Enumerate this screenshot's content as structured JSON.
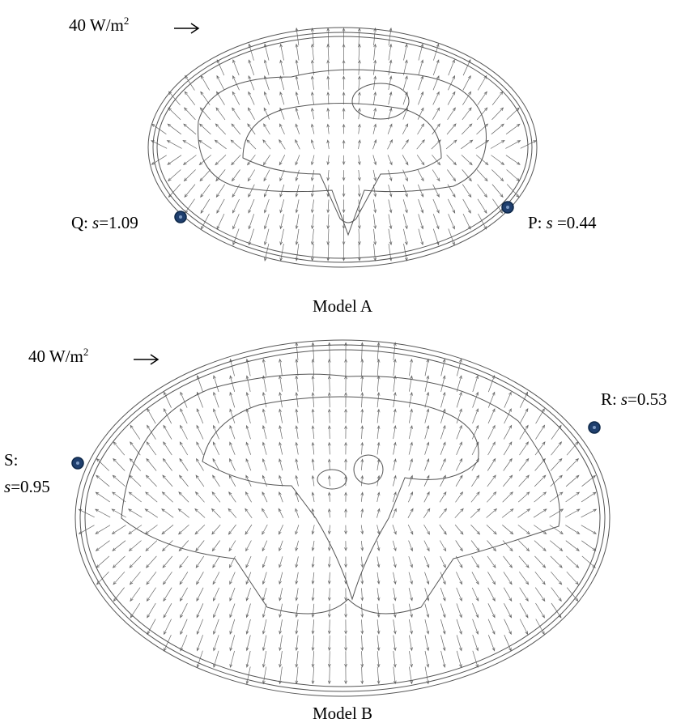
{
  "panels": [
    {
      "caption": "Model A",
      "scale_label": {
        "text": "40 W/m",
        "sup": "2"
      },
      "points": [
        {
          "name": "Q:",
          "var": "s",
          "value": "=1.09"
        },
        {
          "name": "P:",
          "var": "s",
          "value": " =0.44"
        }
      ]
    },
    {
      "caption": "Model B",
      "scale_label": {
        "text": "40 W/m",
        "sup": "2"
      },
      "points": [
        {
          "name": "R:",
          "var": "s",
          "value": "=0.53"
        },
        {
          "name": "S:",
          "var": "s",
          "value": "=0.95"
        }
      ]
    }
  ]
}
